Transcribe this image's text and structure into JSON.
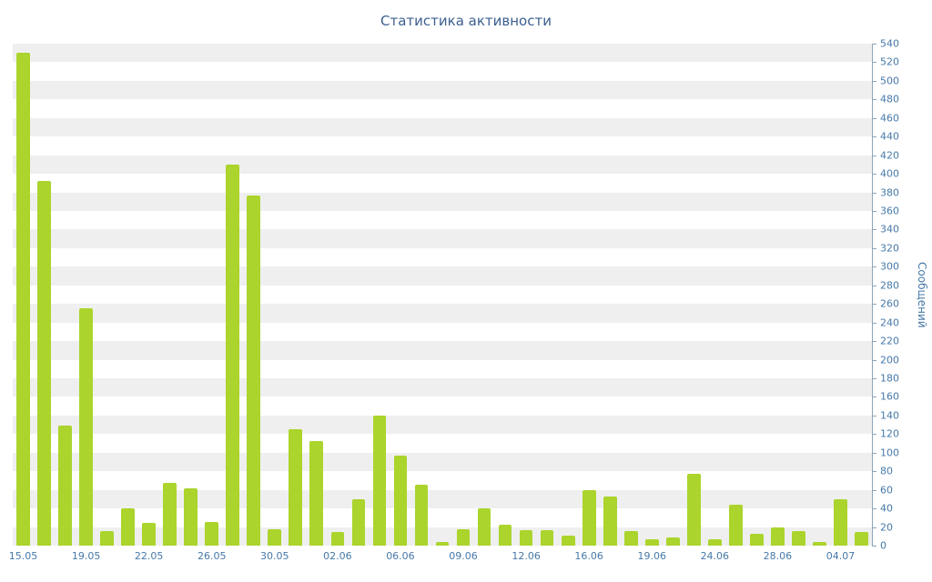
{
  "chart_data": {
    "type": "bar",
    "title": "Статистика активности",
    "xlabel": "",
    "ylabel": "Сообщений",
    "ylim": [
      0,
      540
    ],
    "ytick_step": 20,
    "band_size": 20,
    "grid": "horizontal-stripes",
    "legend_position": "none",
    "bar_color": "#abd42c",
    "stripe_color_a": "#efefef",
    "stripe_color_b": "#ffffff",
    "axis_color": "#8ca4b8",
    "tick_label_color": "#4679a8",
    "title_color": "#3c6090",
    "values": [
      530,
      392,
      129,
      255,
      16,
      40,
      24,
      68,
      62,
      25,
      410,
      377,
      18,
      125,
      113,
      15,
      50,
      140,
      97,
      66,
      4,
      18,
      40,
      23,
      17,
      17,
      11,
      60,
      53,
      16,
      7,
      9,
      77,
      7,
      44,
      13,
      20,
      16,
      4,
      50,
      15
    ],
    "xticks": [
      {
        "bar": 0,
        "label": "15.05"
      },
      {
        "bar": 3,
        "label": "19.05"
      },
      {
        "bar": 6,
        "label": "22.05"
      },
      {
        "bar": 9,
        "label": "26.05"
      },
      {
        "bar": 12,
        "label": "30.05"
      },
      {
        "bar": 15,
        "label": "02.06"
      },
      {
        "bar": 18,
        "label": "06.06"
      },
      {
        "bar": 21,
        "label": "09.06"
      },
      {
        "bar": 24,
        "label": "12.06"
      },
      {
        "bar": 27,
        "label": "16.06"
      },
      {
        "bar": 30,
        "label": "19.06"
      },
      {
        "bar": 33,
        "label": "24.06"
      },
      {
        "bar": 36,
        "label": "28.06"
      },
      {
        "bar": 39,
        "label": "04.07"
      }
    ]
  }
}
